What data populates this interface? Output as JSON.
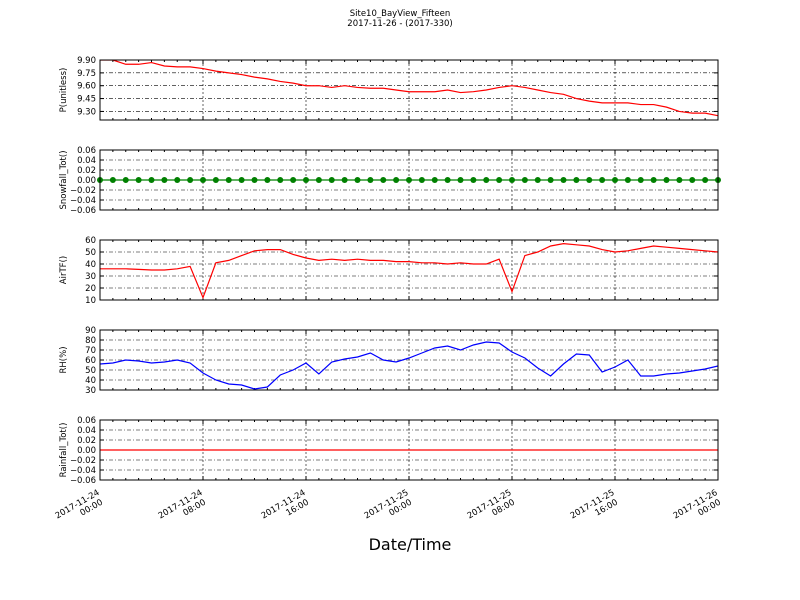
{
  "chart_data": [
    {
      "type": "line",
      "title": "Site10_BayView_Fifteen",
      "subtitle": "2017-11-26 - (2017-330)",
      "ylabel": "P(unitless)",
      "xlim": [
        "2017-11-24 00:00",
        "2017-11-26 00:00"
      ],
      "xticks": [
        "2017-11-24 00:00",
        "2017-11-24 08:00",
        "2017-11-24 16:00",
        "2017-11-25 00:00",
        "2017-11-25 08:00",
        "2017-11-25 16:00",
        "2017-11-26 00:00"
      ],
      "ylim": [
        9.2,
        9.9
      ],
      "yticks": [
        {
          "value": 9.3,
          "label": "9.30"
        },
        {
          "value": 9.45,
          "label": "9.45"
        },
        {
          "value": 9.6,
          "label": "9.60"
        },
        {
          "value": 9.75,
          "label": "9.75"
        },
        {
          "value": 9.9,
          "label": "9.90"
        }
      ],
      "grid": true,
      "x": [
        "2017-11-24 00:00",
        "2017-11-24 01:00",
        "2017-11-24 02:00",
        "2017-11-24 03:00",
        "2017-11-24 04:00",
        "2017-11-24 05:00",
        "2017-11-24 06:00",
        "2017-11-24 07:00",
        "2017-11-24 08:00",
        "2017-11-24 09:00",
        "2017-11-24 10:00",
        "2017-11-24 11:00",
        "2017-11-24 12:00",
        "2017-11-24 13:00",
        "2017-11-24 14:00",
        "2017-11-24 15:00",
        "2017-11-24 16:00",
        "2017-11-24 17:00",
        "2017-11-24 18:00",
        "2017-11-24 19:00",
        "2017-11-24 20:00",
        "2017-11-24 21:00",
        "2017-11-24 22:00",
        "2017-11-24 23:00",
        "2017-11-25 00:00",
        "2017-11-25 01:00",
        "2017-11-25 02:00",
        "2017-11-25 03:00",
        "2017-11-25 04:00",
        "2017-11-25 05:00",
        "2017-11-25 06:00",
        "2017-11-25 07:00",
        "2017-11-25 08:00",
        "2017-11-25 09:00",
        "2017-11-25 10:00",
        "2017-11-25 11:00",
        "2017-11-25 12:00",
        "2017-11-25 13:00",
        "2017-11-25 14:00",
        "2017-11-25 15:00",
        "2017-11-25 16:00",
        "2017-11-25 17:00",
        "2017-11-25 18:00",
        "2017-11-25 19:00",
        "2017-11-25 20:00",
        "2017-11-25 21:00",
        "2017-11-25 22:00",
        "2017-11-25 23:00",
        "2017-11-26 00:00"
      ],
      "series": [
        {
          "color": "#ff0000",
          "values": [
            9.9,
            9.9,
            9.85,
            9.85,
            9.87,
            9.83,
            9.82,
            9.82,
            9.8,
            9.77,
            9.75,
            9.73,
            9.7,
            9.68,
            9.65,
            9.63,
            9.6,
            9.6,
            9.58,
            9.6,
            9.58,
            9.57,
            9.57,
            9.55,
            9.53,
            9.53,
            9.53,
            9.55,
            9.52,
            9.53,
            9.55,
            9.58,
            9.6,
            9.58,
            9.55,
            9.52,
            9.5,
            9.45,
            9.42,
            9.4,
            9.4,
            9.4,
            9.38,
            9.38,
            9.35,
            9.3,
            9.28,
            9.28,
            9.25
          ]
        }
      ]
    },
    {
      "type": "line",
      "ylabel": "Snowfall_Tot()",
      "xlim": [
        "2017-11-24 00:00",
        "2017-11-26 00:00"
      ],
      "xticks": [
        "2017-11-24 00:00",
        "2017-11-24 08:00",
        "2017-11-24 16:00",
        "2017-11-25 00:00",
        "2017-11-25 08:00",
        "2017-11-25 16:00",
        "2017-11-26 00:00"
      ],
      "ylim": [
        -0.06,
        0.06
      ],
      "yticks": [
        {
          "value": -0.06,
          "label": "−0.06"
        },
        {
          "value": -0.04,
          "label": "−0.04"
        },
        {
          "value": -0.02,
          "label": "−0.02"
        },
        {
          "value": 0,
          "label": "0.00"
        },
        {
          "value": 0.02,
          "label": "0.02"
        },
        {
          "value": 0.04,
          "label": "0.04"
        },
        {
          "value": 0.06,
          "label": "0.06"
        }
      ],
      "grid": true,
      "x": [
        "2017-11-24 00:00",
        "2017-11-24 01:00",
        "2017-11-24 02:00",
        "2017-11-24 03:00",
        "2017-11-24 04:00",
        "2017-11-24 05:00",
        "2017-11-24 06:00",
        "2017-11-24 07:00",
        "2017-11-24 08:00",
        "2017-11-24 09:00",
        "2017-11-24 10:00",
        "2017-11-24 11:00",
        "2017-11-24 12:00",
        "2017-11-24 13:00",
        "2017-11-24 14:00",
        "2017-11-24 15:00",
        "2017-11-24 16:00",
        "2017-11-24 17:00",
        "2017-11-24 18:00",
        "2017-11-24 19:00",
        "2017-11-24 20:00",
        "2017-11-24 21:00",
        "2017-11-24 22:00",
        "2017-11-24 23:00",
        "2017-11-25 00:00",
        "2017-11-25 01:00",
        "2017-11-25 02:00",
        "2017-11-25 03:00",
        "2017-11-25 04:00",
        "2017-11-25 05:00",
        "2017-11-25 06:00",
        "2017-11-25 07:00",
        "2017-11-25 08:00",
        "2017-11-25 09:00",
        "2017-11-25 10:00",
        "2017-11-25 11:00",
        "2017-11-25 12:00",
        "2017-11-25 13:00",
        "2017-11-25 14:00",
        "2017-11-25 15:00",
        "2017-11-25 16:00",
        "2017-11-25 17:00",
        "2017-11-25 18:00",
        "2017-11-25 19:00",
        "2017-11-25 20:00",
        "2017-11-25 21:00",
        "2017-11-25 22:00",
        "2017-11-25 23:00",
        "2017-11-26 00:00"
      ],
      "series": [
        {
          "color": "#008000",
          "marker": true,
          "values": [
            0,
            0,
            0,
            0,
            0,
            0,
            0,
            0,
            0,
            0,
            0,
            0,
            0,
            0,
            0,
            0,
            0,
            0,
            0,
            0,
            0,
            0,
            0,
            0,
            0,
            0,
            0,
            0,
            0,
            0,
            0,
            0,
            0,
            0,
            0,
            0,
            0,
            0,
            0,
            0,
            0,
            0,
            0,
            0,
            0,
            0,
            0,
            0,
            0
          ]
        }
      ]
    },
    {
      "type": "line",
      "ylabel": "AirTF()",
      "xlim": [
        "2017-11-24 00:00",
        "2017-11-26 00:00"
      ],
      "xticks": [
        "2017-11-24 00:00",
        "2017-11-24 08:00",
        "2017-11-24 16:00",
        "2017-11-25 00:00",
        "2017-11-25 08:00",
        "2017-11-25 16:00",
        "2017-11-26 00:00"
      ],
      "ylim": [
        10,
        60
      ],
      "yticks": [
        10,
        20,
        30,
        40,
        50,
        60
      ],
      "grid": true,
      "x": [
        "2017-11-24 00:00",
        "2017-11-24 01:00",
        "2017-11-24 02:00",
        "2017-11-24 03:00",
        "2017-11-24 04:00",
        "2017-11-24 05:00",
        "2017-11-24 06:00",
        "2017-11-24 07:00",
        "2017-11-24 08:00",
        "2017-11-24 09:00",
        "2017-11-24 10:00",
        "2017-11-24 11:00",
        "2017-11-24 12:00",
        "2017-11-24 13:00",
        "2017-11-24 14:00",
        "2017-11-24 15:00",
        "2017-11-24 16:00",
        "2017-11-24 17:00",
        "2017-11-24 18:00",
        "2017-11-24 19:00",
        "2017-11-24 20:00",
        "2017-11-24 21:00",
        "2017-11-24 22:00",
        "2017-11-24 23:00",
        "2017-11-25 00:00",
        "2017-11-25 01:00",
        "2017-11-25 02:00",
        "2017-11-25 03:00",
        "2017-11-25 04:00",
        "2017-11-25 05:00",
        "2017-11-25 06:00",
        "2017-11-25 07:00",
        "2017-11-25 08:00",
        "2017-11-25 09:00",
        "2017-11-25 10:00",
        "2017-11-25 11:00",
        "2017-11-25 12:00",
        "2017-11-25 13:00",
        "2017-11-25 14:00",
        "2017-11-25 15:00",
        "2017-11-25 16:00",
        "2017-11-25 17:00",
        "2017-11-25 18:00",
        "2017-11-25 19:00",
        "2017-11-25 20:00",
        "2017-11-25 21:00",
        "2017-11-25 22:00",
        "2017-11-25 23:00",
        "2017-11-26 00:00"
      ],
      "series": [
        {
          "color": "#ff0000",
          "values": [
            36,
            36,
            36,
            35.5,
            35,
            35,
            36,
            38,
            12,
            41,
            43,
            47,
            51,
            52,
            52,
            48,
            45,
            43,
            44,
            43,
            44,
            43,
            43,
            42,
            42,
            41,
            41,
            40,
            41,
            40,
            40,
            44,
            17,
            47,
            50,
            55,
            57,
            56,
            55,
            52,
            50,
            51,
            53,
            55,
            54,
            53,
            52,
            51,
            50
          ]
        }
      ]
    },
    {
      "type": "line",
      "ylabel": "RH(%)",
      "xlim": [
        "2017-11-24 00:00",
        "2017-11-26 00:00"
      ],
      "xticks": [
        "2017-11-24 00:00",
        "2017-11-24 08:00",
        "2017-11-24 16:00",
        "2017-11-25 00:00",
        "2017-11-25 08:00",
        "2017-11-25 16:00",
        "2017-11-26 00:00"
      ],
      "ylim": [
        30,
        90
      ],
      "yticks": [
        30,
        40,
        50,
        60,
        70,
        80,
        90
      ],
      "grid": true,
      "x": [
        "2017-11-24 00:00",
        "2017-11-24 01:00",
        "2017-11-24 02:00",
        "2017-11-24 03:00",
        "2017-11-24 04:00",
        "2017-11-24 05:00",
        "2017-11-24 06:00",
        "2017-11-24 07:00",
        "2017-11-24 08:00",
        "2017-11-24 09:00",
        "2017-11-24 10:00",
        "2017-11-24 11:00",
        "2017-11-24 12:00",
        "2017-11-24 13:00",
        "2017-11-24 14:00",
        "2017-11-24 15:00",
        "2017-11-24 16:00",
        "2017-11-24 17:00",
        "2017-11-24 18:00",
        "2017-11-24 19:00",
        "2017-11-24 20:00",
        "2017-11-24 21:00",
        "2017-11-24 22:00",
        "2017-11-24 23:00",
        "2017-11-25 00:00",
        "2017-11-25 01:00",
        "2017-11-25 02:00",
        "2017-11-25 03:00",
        "2017-11-25 04:00",
        "2017-11-25 05:00",
        "2017-11-25 06:00",
        "2017-11-25 07:00",
        "2017-11-25 08:00",
        "2017-11-25 09:00",
        "2017-11-25 10:00",
        "2017-11-25 11:00",
        "2017-11-25 12:00",
        "2017-11-25 13:00",
        "2017-11-25 14:00",
        "2017-11-25 15:00",
        "2017-11-25 16:00",
        "2017-11-25 17:00",
        "2017-11-25 18:00",
        "2017-11-25 19:00",
        "2017-11-25 20:00",
        "2017-11-25 21:00",
        "2017-11-25 22:00",
        "2017-11-25 23:00",
        "2017-11-26 00:00"
      ],
      "series": [
        {
          "color": "#0000ff",
          "values": [
            56,
            57,
            60,
            59,
            57,
            58,
            60,
            57,
            47,
            40,
            36,
            35,
            31,
            33,
            45,
            50,
            57,
            46,
            58,
            61,
            63,
            67,
            60,
            58,
            62,
            67,
            72,
            74,
            70,
            75,
            78,
            77,
            68,
            62,
            52,
            44,
            56,
            66,
            65,
            48,
            53,
            60,
            44,
            44,
            46,
            47,
            49,
            51,
            54
          ]
        }
      ]
    },
    {
      "type": "line",
      "ylabel": "Rainfall_Tot()",
      "xlabel": "Date/Time",
      "xlim": [
        "2017-11-24 00:00",
        "2017-11-26 00:00"
      ],
      "xticks": [
        "2017-11-24 00:00",
        "2017-11-24 08:00",
        "2017-11-24 16:00",
        "2017-11-25 00:00",
        "2017-11-25 08:00",
        "2017-11-25 16:00",
        "2017-11-26 00:00"
      ],
      "ylim": [
        -0.06,
        0.06
      ],
      "yticks": [
        {
          "value": -0.06,
          "label": "−0.06"
        },
        {
          "value": -0.04,
          "label": "−0.04"
        },
        {
          "value": -0.02,
          "label": "−0.02"
        },
        {
          "value": 0,
          "label": "0.00"
        },
        {
          "value": 0.02,
          "label": "0.02"
        },
        {
          "value": 0.04,
          "label": "0.04"
        },
        {
          "value": 0.06,
          "label": "0.06"
        }
      ],
      "grid": true,
      "show_xticklabels": true,
      "x": [
        "2017-11-24 00:00",
        "2017-11-24 01:00",
        "2017-11-24 02:00",
        "2017-11-24 03:00",
        "2017-11-24 04:00",
        "2017-11-24 05:00",
        "2017-11-24 06:00",
        "2017-11-24 07:00",
        "2017-11-24 08:00",
        "2017-11-24 09:00",
        "2017-11-24 10:00",
        "2017-11-24 11:00",
        "2017-11-24 12:00",
        "2017-11-24 13:00",
        "2017-11-24 14:00",
        "2017-11-24 15:00",
        "2017-11-24 16:00",
        "2017-11-24 17:00",
        "2017-11-24 18:00",
        "2017-11-24 19:00",
        "2017-11-24 20:00",
        "2017-11-24 21:00",
        "2017-11-24 22:00",
        "2017-11-24 23:00",
        "2017-11-25 00:00",
        "2017-11-25 01:00",
        "2017-11-25 02:00",
        "2017-11-25 03:00",
        "2017-11-25 04:00",
        "2017-11-25 05:00",
        "2017-11-25 06:00",
        "2017-11-25 07:00",
        "2017-11-25 08:00",
        "2017-11-25 09:00",
        "2017-11-25 10:00",
        "2017-11-25 11:00",
        "2017-11-25 12:00",
        "2017-11-25 13:00",
        "2017-11-25 14:00",
        "2017-11-25 15:00",
        "2017-11-25 16:00",
        "2017-11-25 17:00",
        "2017-11-25 18:00",
        "2017-11-25 19:00",
        "2017-11-25 20:00",
        "2017-11-25 21:00",
        "2017-11-25 22:00",
        "2017-11-25 23:00",
        "2017-11-26 00:00"
      ],
      "series": [
        {
          "color": "#ff0000",
          "values": [
            0,
            0,
            0,
            0,
            0,
            0,
            0,
            0,
            0,
            0,
            0,
            0,
            0,
            0,
            0,
            0,
            0,
            0,
            0,
            0,
            0,
            0,
            0,
            0,
            0,
            0,
            0,
            0,
            0,
            0,
            0,
            0,
            0,
            0,
            0,
            0,
            0,
            0,
            0,
            0,
            0,
            0,
            0,
            0,
            0,
            0,
            0,
            0,
            0
          ]
        }
      ]
    }
  ]
}
